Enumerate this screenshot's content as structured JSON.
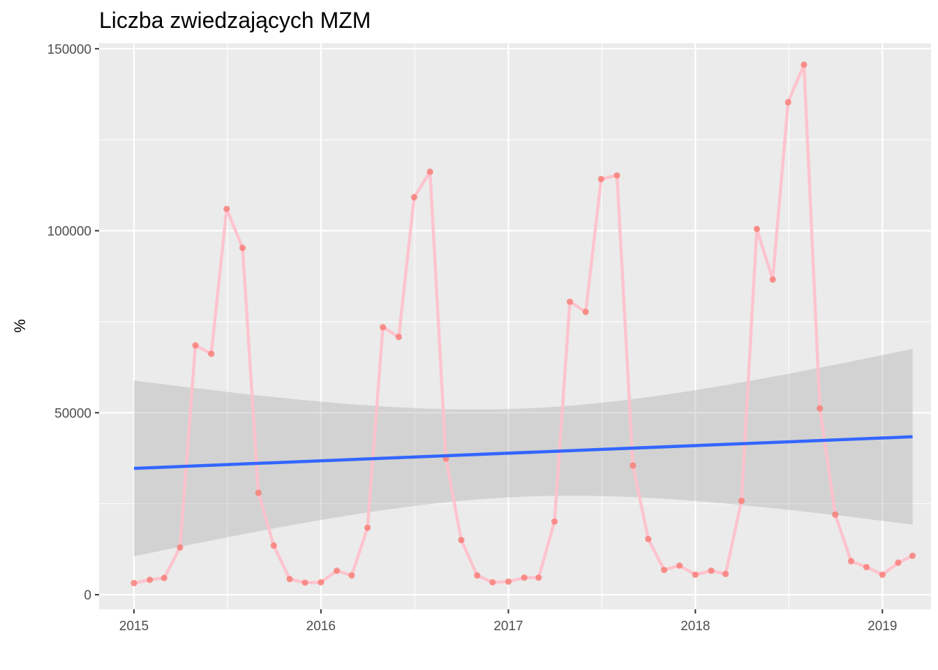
{
  "chart_data": {
    "type": "line",
    "title": "Liczba zwiedzających MZM",
    "xlabel": "",
    "ylabel": "%",
    "x_ticks": [
      "2015",
      "2016",
      "2017",
      "2018",
      "2019"
    ],
    "y_ticks": [
      "0",
      "50000",
      "100000",
      "150000"
    ],
    "ylim": [
      -4000,
      151500
    ],
    "xlim": [
      "2014-10-25",
      "2019-04-06"
    ],
    "grid": true,
    "legend": "none",
    "series": [
      {
        "type": "line+points",
        "color": "#FFC0CB",
        "point_color": "#F8766D",
        "x": [
          "2015-01",
          "2015-02",
          "2015-03",
          "2015-04",
          "2015-05",
          "2015-06",
          "2015-07",
          "2015-08",
          "2015-09",
          "2015-10",
          "2015-11",
          "2015-12",
          "2016-01",
          "2016-02",
          "2016-03",
          "2016-04",
          "2016-05",
          "2016-06",
          "2016-07",
          "2016-08",
          "2016-09",
          "2016-10",
          "2016-11",
          "2016-12",
          "2017-01",
          "2017-02",
          "2017-03",
          "2017-04",
          "2017-05",
          "2017-06",
          "2017-07",
          "2017-08",
          "2017-09",
          "2017-10",
          "2017-11",
          "2017-12",
          "2018-01",
          "2018-02",
          "2018-03",
          "2018-04",
          "2018-05",
          "2018-06",
          "2018-07",
          "2018-08",
          "2018-09",
          "2018-10",
          "2018-11",
          "2018-12",
          "2019-01",
          "2019-02",
          "2019-03"
        ],
        "values": [
          3200,
          4100,
          4600,
          13000,
          68500,
          66200,
          106000,
          95300,
          28000,
          13500,
          4300,
          3300,
          3400,
          6600,
          5300,
          18400,
          73500,
          70800,
          109200,
          116200,
          37400,
          15000,
          5300,
          3400,
          3600,
          4700,
          4700,
          20100,
          80500,
          77700,
          114200,
          115200,
          35500,
          15300,
          6800,
          8000,
          5500,
          6600,
          5700,
          25800,
          100500,
          86600,
          135300,
          145600,
          51200,
          22000,
          9200,
          7600,
          5500,
          8800,
          10700
        ]
      },
      {
        "type": "trend",
        "color": "#3366FF",
        "x": [
          "2015-01",
          "2019-03"
        ],
        "values": [
          34700,
          43400
        ],
        "ci_lower": [
          10600,
          19300
        ],
        "ci_upper": [
          58900,
          67600
        ],
        "ci_color": "#999999"
      }
    ]
  }
}
